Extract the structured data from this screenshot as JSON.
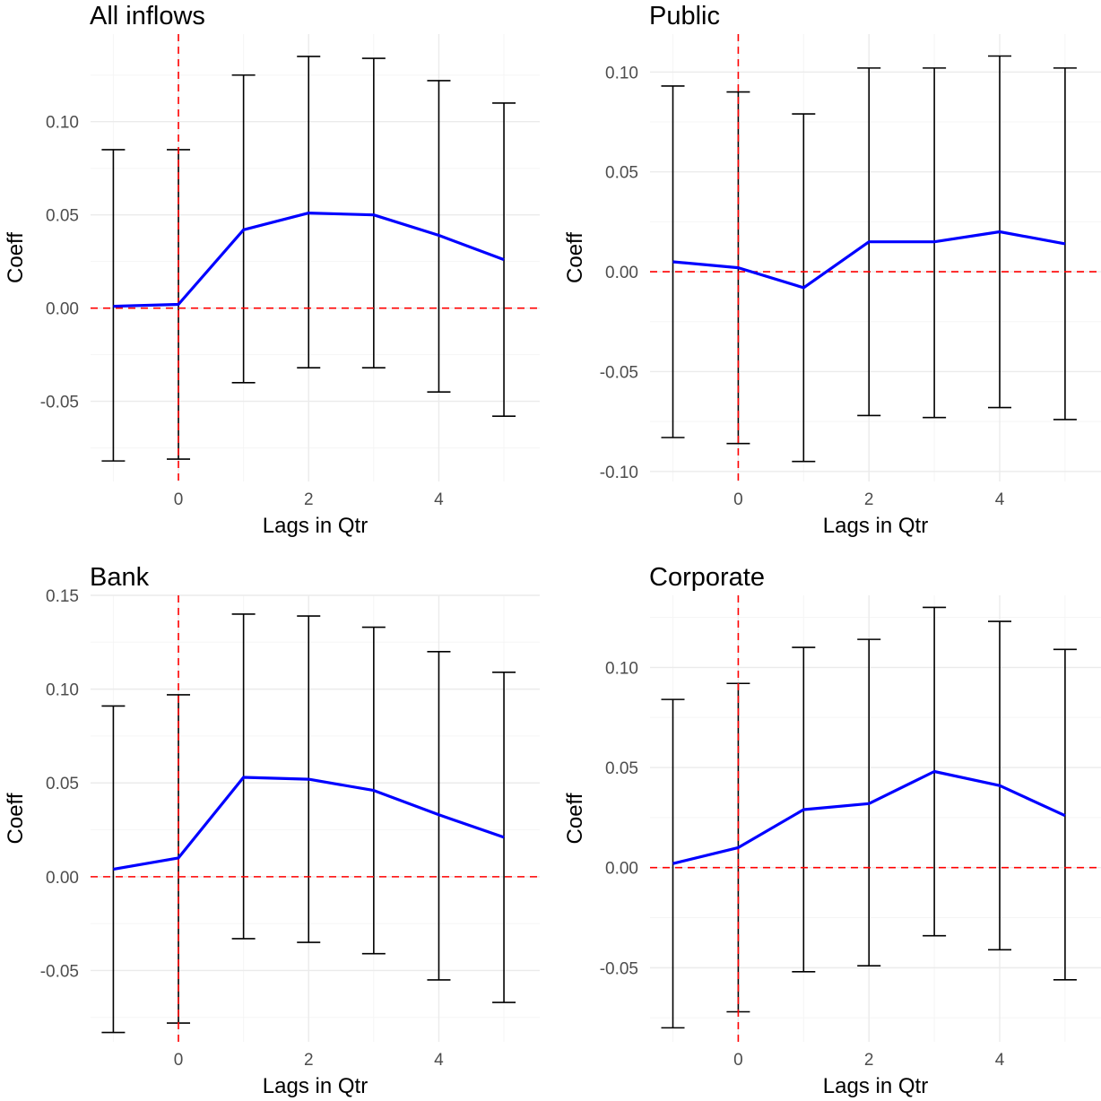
{
  "chart_data": [
    {
      "type": "line",
      "title": "All inflows",
      "xlabel": "Lags in Qtr",
      "ylabel": "Coeff",
      "xlim": [
        -1.35,
        5.55
      ],
      "ylim": [
        -0.093,
        0.147
      ],
      "xticks": [
        0,
        2,
        4
      ],
      "yticks": [
        -0.05,
        0.0,
        0.05,
        0.1
      ],
      "ytick_labels": [
        "-0.05",
        "0.00",
        "0.05",
        "0.10"
      ],
      "reference_lines": {
        "x": 0,
        "y": 0
      },
      "grid": true,
      "points": [
        {
          "x": -1,
          "coef": 0.001,
          "lower": -0.082,
          "upper": 0.085
        },
        {
          "x": 0,
          "coef": 0.002,
          "lower": -0.081,
          "upper": 0.085
        },
        {
          "x": 1,
          "coef": 0.042,
          "lower": -0.04,
          "upper": 0.125
        },
        {
          "x": 2,
          "coef": 0.051,
          "lower": -0.032,
          "upper": 0.135
        },
        {
          "x": 3,
          "coef": 0.05,
          "lower": -0.032,
          "upper": 0.134
        },
        {
          "x": 4,
          "coef": 0.039,
          "lower": -0.045,
          "upper": 0.122
        },
        {
          "x": 5,
          "coef": 0.026,
          "lower": -0.058,
          "upper": 0.11
        }
      ]
    },
    {
      "type": "line",
      "title": "Public",
      "xlabel": "Lags in Qtr",
      "ylabel": "Coeff",
      "xlim": [
        -1.35,
        5.55
      ],
      "ylim": [
        -0.105,
        0.119
      ],
      "xticks": [
        0,
        2,
        4
      ],
      "yticks": [
        -0.1,
        -0.05,
        0.0,
        0.05,
        0.1
      ],
      "ytick_labels": [
        "-0.10",
        "-0.05",
        "0.00",
        "0.05",
        "0.10"
      ],
      "reference_lines": {
        "x": 0,
        "y": 0
      },
      "grid": true,
      "points": [
        {
          "x": -1,
          "coef": 0.005,
          "lower": -0.083,
          "upper": 0.093
        },
        {
          "x": 0,
          "coef": 0.002,
          "lower": -0.086,
          "upper": 0.09
        },
        {
          "x": 1,
          "coef": -0.008,
          "lower": -0.095,
          "upper": 0.079
        },
        {
          "x": 2,
          "coef": 0.015,
          "lower": -0.072,
          "upper": 0.102
        },
        {
          "x": 3,
          "coef": 0.015,
          "lower": -0.073,
          "upper": 0.102
        },
        {
          "x": 4,
          "coef": 0.02,
          "lower": -0.068,
          "upper": 0.108
        },
        {
          "x": 5,
          "coef": 0.014,
          "lower": -0.074,
          "upper": 0.102
        }
      ]
    },
    {
      "type": "line",
      "title": "Bank",
      "xlabel": "Lags in Qtr",
      "ylabel": "Coeff",
      "xlim": [
        -1.35,
        5.55
      ],
      "ylim": [
        -0.088,
        0.15
      ],
      "xticks": [
        0,
        2,
        4
      ],
      "yticks": [
        -0.05,
        0.0,
        0.05,
        0.1,
        0.15
      ],
      "ytick_labels": [
        "-0.05",
        "0.00",
        "0.05",
        "0.10",
        "0.15"
      ],
      "reference_lines": {
        "x": 0,
        "y": 0
      },
      "grid": true,
      "points": [
        {
          "x": -1,
          "coef": 0.004,
          "lower": -0.083,
          "upper": 0.091
        },
        {
          "x": 0,
          "coef": 0.01,
          "lower": -0.078,
          "upper": 0.097
        },
        {
          "x": 1,
          "coef": 0.053,
          "lower": -0.033,
          "upper": 0.14
        },
        {
          "x": 2,
          "coef": 0.052,
          "lower": -0.035,
          "upper": 0.139
        },
        {
          "x": 3,
          "coef": 0.046,
          "lower": -0.041,
          "upper": 0.133
        },
        {
          "x": 4,
          "coef": 0.033,
          "lower": -0.055,
          "upper": 0.12
        },
        {
          "x": 5,
          "coef": 0.021,
          "lower": -0.067,
          "upper": 0.109
        }
      ]
    },
    {
      "type": "line",
      "title": "Corporate",
      "xlabel": "Lags in Qtr",
      "ylabel": "Coeff",
      "xlim": [
        -1.35,
        5.55
      ],
      "ylim": [
        -0.087,
        0.136
      ],
      "xticks": [
        0,
        2,
        4
      ],
      "yticks": [
        -0.05,
        0.0,
        0.05,
        0.1
      ],
      "ytick_labels": [
        "-0.05",
        "0.00",
        "0.05",
        "0.10"
      ],
      "reference_lines": {
        "x": 0,
        "y": 0
      },
      "grid": true,
      "points": [
        {
          "x": -1,
          "coef": 0.002,
          "lower": -0.08,
          "upper": 0.084
        },
        {
          "x": 0,
          "coef": 0.01,
          "lower": -0.072,
          "upper": 0.092
        },
        {
          "x": 1,
          "coef": 0.029,
          "lower": -0.052,
          "upper": 0.11
        },
        {
          "x": 2,
          "coef": 0.032,
          "lower": -0.049,
          "upper": 0.114
        },
        {
          "x": 3,
          "coef": 0.048,
          "lower": -0.034,
          "upper": 0.13
        },
        {
          "x": 4,
          "coef": 0.041,
          "lower": -0.041,
          "upper": 0.123
        },
        {
          "x": 5,
          "coef": 0.026,
          "lower": -0.056,
          "upper": 0.109
        }
      ]
    }
  ],
  "colors": {
    "estimate_line": "#0000ff",
    "reference_line": "#ff0000",
    "error_bar": "#000000",
    "grid_major": "#ebebeb",
    "grid_minor": "#f5f5f5",
    "tick_text": "#4d4d4d",
    "background": "#ffffff"
  }
}
